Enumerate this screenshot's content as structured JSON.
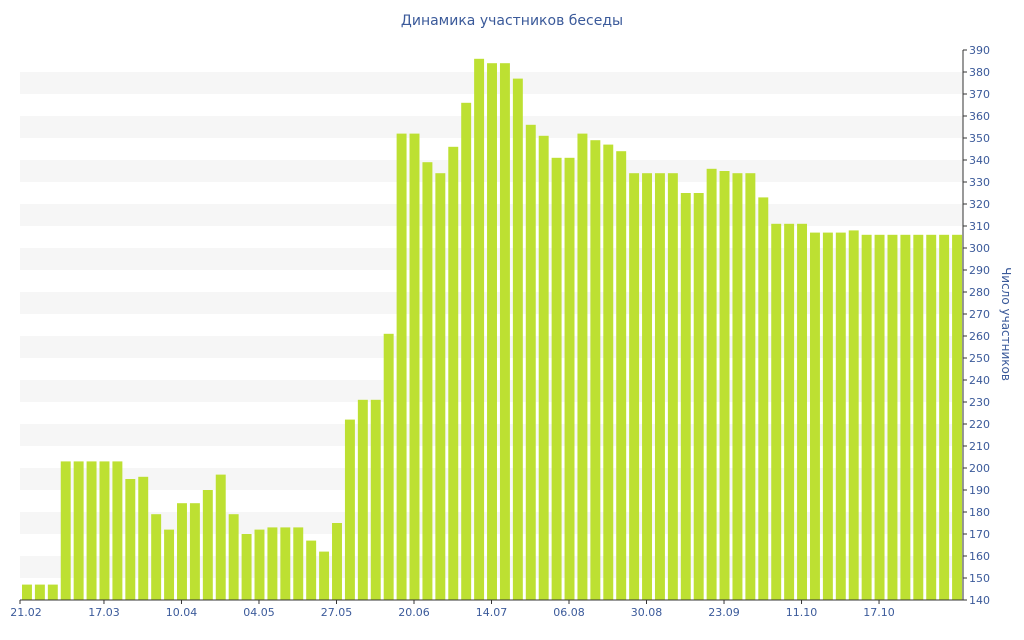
{
  "chart_data": {
    "type": "bar",
    "title": "Динамика участников беседы",
    "ylabel": "Число участников",
    "xlabel": "",
    "ylim": [
      140,
      390
    ],
    "y_ticks": [
      140,
      150,
      160,
      170,
      180,
      190,
      200,
      210,
      220,
      230,
      240,
      250,
      260,
      270,
      280,
      290,
      300,
      310,
      320,
      330,
      340,
      350,
      360,
      370,
      380,
      390
    ],
    "x_tick_labels": [
      {
        "index": 0,
        "label": "21.02"
      },
      {
        "index": 6,
        "label": "17.03"
      },
      {
        "index": 12,
        "label": "10.04"
      },
      {
        "index": 18,
        "label": "04.05"
      },
      {
        "index": 24,
        "label": "27.05"
      },
      {
        "index": 30,
        "label": "20.06"
      },
      {
        "index": 36,
        "label": "14.07"
      },
      {
        "index": 42,
        "label": "06.08"
      },
      {
        "index": 48,
        "label": "30.08"
      },
      {
        "index": 54,
        "label": "23.09"
      },
      {
        "index": 60,
        "label": "11.10"
      },
      {
        "index": 66,
        "label": "17.10"
      }
    ],
    "values": [
      147,
      147,
      147,
      203,
      203,
      203,
      203,
      203,
      195,
      196,
      179,
      172,
      184,
      184,
      190,
      197,
      179,
      170,
      172,
      173,
      173,
      173,
      167,
      162,
      175,
      222,
      231,
      231,
      261,
      352,
      352,
      339,
      334,
      346,
      366,
      386,
      384,
      384,
      377,
      356,
      351,
      341,
      341,
      352,
      349,
      347,
      344,
      334,
      334,
      334,
      334,
      325,
      325,
      336,
      335,
      334,
      334,
      323,
      311,
      311,
      311,
      307,
      307,
      307,
      308,
      306,
      306,
      306,
      306,
      306,
      306,
      306,
      306
    ],
    "bar_color": "#bde032",
    "band_color": "#f6f6f6",
    "text_color": "#3b5a9a",
    "axis_color": "#333333",
    "y_axis_side": "right",
    "grid": "alternating-bands"
  }
}
